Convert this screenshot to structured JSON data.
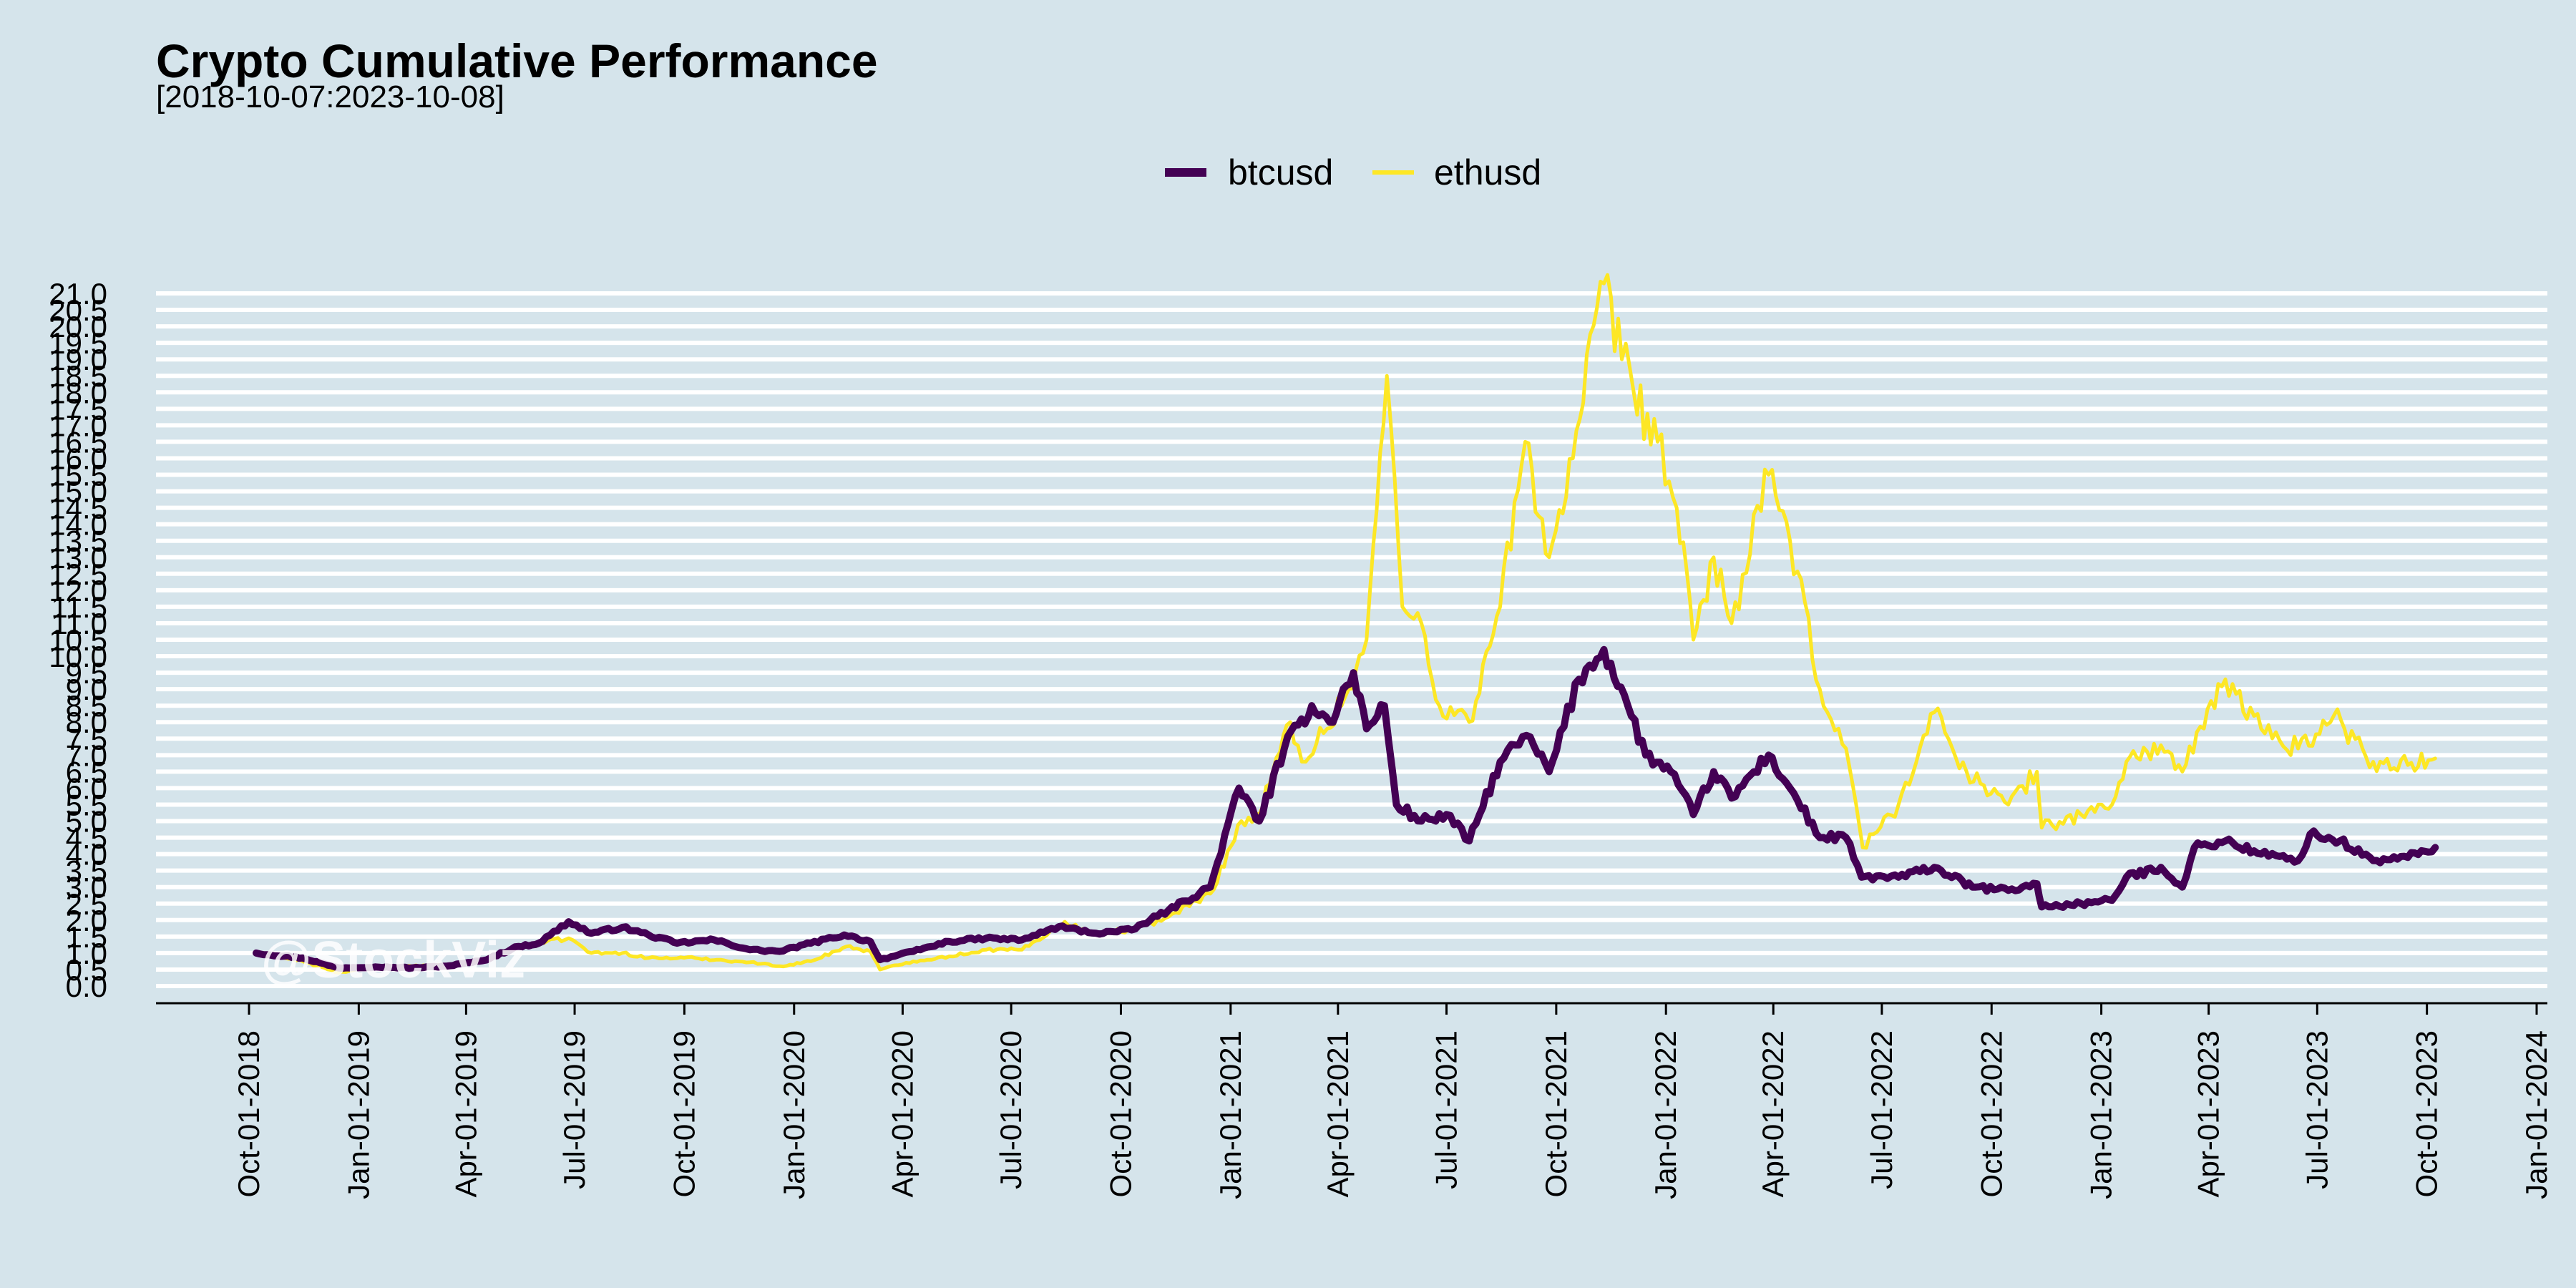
{
  "chart_data": {
    "type": "line",
    "title": "Crypto Cumulative Performance",
    "subtitle": "[2018-10-07:2023-10-08]",
    "watermark": "@StockViz",
    "xlabel": "",
    "ylabel": "",
    "legend_position": "top-center",
    "grid": true,
    "background_color": "#d5e4eb",
    "grid_color": "#ffffff",
    "ylim": [
      0,
      21
    ],
    "yticks": [
      "0.0",
      "0.5",
      "1.0",
      "1.5",
      "2.0",
      "2.5",
      "3.0",
      "3.5",
      "4.0",
      "4.5",
      "5.0",
      "5.5",
      "6.0",
      "6.5",
      "7.0",
      "7.5",
      "8.0",
      "8.5",
      "9.0",
      "9.5",
      "10.0",
      "10.5",
      "11.0",
      "11.5",
      "12.0",
      "12.5",
      "13.0",
      "13.5",
      "14.0",
      "14.5",
      "15.0",
      "15.5",
      "16.0",
      "16.5",
      "17.0",
      "17.5",
      "18.0",
      "18.5",
      "19.0",
      "19.5",
      "20.0",
      "20.5",
      "21.0"
    ],
    "xlim": [
      "2018-07-15",
      "2024-01-10"
    ],
    "xticks": [
      "Oct-01-2018",
      "Jan-01-2019",
      "Apr-01-2019",
      "Jul-01-2019",
      "Oct-01-2019",
      "Jan-01-2020",
      "Apr-01-2020",
      "Jul-01-2020",
      "Oct-01-2020",
      "Jan-01-2021",
      "Apr-01-2021",
      "Jul-01-2021",
      "Oct-01-2021",
      "Jan-01-2022",
      "Apr-01-2022",
      "Jul-01-2022",
      "Oct-01-2022",
      "Jan-01-2023",
      "Apr-01-2023",
      "Jul-01-2023",
      "Oct-01-2023",
      "Jan-01-2024"
    ],
    "xtick_dates": [
      "2018-10-01",
      "2019-01-01",
      "2019-04-01",
      "2019-07-01",
      "2019-10-01",
      "2020-01-01",
      "2020-04-01",
      "2020-07-01",
      "2020-10-01",
      "2021-01-01",
      "2021-04-01",
      "2021-07-01",
      "2021-10-01",
      "2022-01-01",
      "2022-04-01",
      "2022-07-01",
      "2022-10-01",
      "2023-01-01",
      "2023-04-01",
      "2023-07-01",
      "2023-10-01",
      "2024-01-01"
    ],
    "series": [
      {
        "name": "btcusd",
        "color": "#440154",
        "line_width": 10,
        "points": [
          [
            "2018-10-07",
            1.0
          ],
          [
            "2018-11-15",
            0.85
          ],
          [
            "2018-12-15",
            0.55
          ],
          [
            "2019-01-15",
            0.58
          ],
          [
            "2019-02-15",
            0.55
          ],
          [
            "2019-03-15",
            0.6
          ],
          [
            "2019-04-15",
            0.77
          ],
          [
            "2019-05-15",
            1.2
          ],
          [
            "2019-06-01",
            1.3
          ],
          [
            "2019-06-26",
            1.95
          ],
          [
            "2019-07-15",
            1.6
          ],
          [
            "2019-08-10",
            1.78
          ],
          [
            "2019-09-01",
            1.55
          ],
          [
            "2019-09-25",
            1.3
          ],
          [
            "2019-10-26",
            1.4
          ],
          [
            "2019-11-25",
            1.1
          ],
          [
            "2019-12-20",
            1.05
          ],
          [
            "2020-01-15",
            1.3
          ],
          [
            "2020-02-12",
            1.55
          ],
          [
            "2020-03-05",
            1.35
          ],
          [
            "2020-03-13",
            0.8
          ],
          [
            "2020-04-10",
            1.05
          ],
          [
            "2020-05-10",
            1.35
          ],
          [
            "2020-06-10",
            1.45
          ],
          [
            "2020-07-10",
            1.4
          ],
          [
            "2020-08-10",
            1.8
          ],
          [
            "2020-09-10",
            1.6
          ],
          [
            "2020-10-10",
            1.7
          ],
          [
            "2020-11-10",
            2.3
          ],
          [
            "2020-12-15",
            3.0
          ],
          [
            "2021-01-08",
            6.0
          ],
          [
            "2021-01-25",
            5.0
          ],
          [
            "2021-02-15",
            7.2
          ],
          [
            "2021-03-10",
            8.5
          ],
          [
            "2021-03-25",
            8.0
          ],
          [
            "2021-04-14",
            9.5
          ],
          [
            "2021-04-25",
            7.8
          ],
          [
            "2021-05-10",
            8.5
          ],
          [
            "2021-05-20",
            5.5
          ],
          [
            "2021-06-10",
            5.0
          ],
          [
            "2021-07-01",
            5.2
          ],
          [
            "2021-07-20",
            4.4
          ],
          [
            "2021-08-15",
            6.8
          ],
          [
            "2021-09-06",
            7.6
          ],
          [
            "2021-09-25",
            6.5
          ],
          [
            "2021-10-20",
            9.3
          ],
          [
            "2021-11-10",
            10.2
          ],
          [
            "2021-11-30",
            8.5
          ],
          [
            "2021-12-15",
            7.0
          ],
          [
            "2022-01-05",
            6.5
          ],
          [
            "2022-01-24",
            5.2
          ],
          [
            "2022-02-10",
            6.5
          ],
          [
            "2022-02-25",
            5.7
          ],
          [
            "2022-03-28",
            7.0
          ],
          [
            "2022-04-15",
            6.0
          ],
          [
            "2022-05-10",
            4.5
          ],
          [
            "2022-06-01",
            4.5
          ],
          [
            "2022-06-14",
            3.3
          ],
          [
            "2022-07-15",
            3.3
          ],
          [
            "2022-08-14",
            3.6
          ],
          [
            "2022-09-15",
            3.0
          ],
          [
            "2022-10-15",
            2.9
          ],
          [
            "2022-11-08",
            3.1
          ],
          [
            "2022-11-12",
            2.4
          ],
          [
            "2022-12-15",
            2.5
          ],
          [
            "2023-01-10",
            2.6
          ],
          [
            "2023-01-22",
            3.3
          ],
          [
            "2023-02-20",
            3.6
          ],
          [
            "2023-03-10",
            3.0
          ],
          [
            "2023-03-20",
            4.2
          ],
          [
            "2023-04-15",
            4.4
          ],
          [
            "2023-05-15",
            4.0
          ],
          [
            "2023-06-15",
            3.8
          ],
          [
            "2023-06-25",
            4.6
          ],
          [
            "2023-07-20",
            4.4
          ],
          [
            "2023-08-17",
            3.8
          ],
          [
            "2023-09-15",
            3.9
          ],
          [
            "2023-10-08",
            4.2
          ]
        ]
      },
      {
        "name": "ethusd",
        "color": "#fde725",
        "line_width": 5,
        "points": [
          [
            "2018-10-07",
            1.0
          ],
          [
            "2018-11-15",
            0.75
          ],
          [
            "2018-12-15",
            0.4
          ],
          [
            "2019-01-15",
            0.57
          ],
          [
            "2019-02-15",
            0.6
          ],
          [
            "2019-03-15",
            0.62
          ],
          [
            "2019-04-15",
            0.75
          ],
          [
            "2019-05-15",
            1.2
          ],
          [
            "2019-06-26",
            1.45
          ],
          [
            "2019-07-15",
            1.0
          ],
          [
            "2019-08-10",
            1.0
          ],
          [
            "2019-09-01",
            0.85
          ],
          [
            "2019-10-10",
            0.85
          ],
          [
            "2019-11-25",
            0.72
          ],
          [
            "2019-12-20",
            0.6
          ],
          [
            "2020-01-15",
            0.75
          ],
          [
            "2020-02-14",
            1.2
          ],
          [
            "2020-03-05",
            1.05
          ],
          [
            "2020-03-13",
            0.5
          ],
          [
            "2020-04-10",
            0.75
          ],
          [
            "2020-05-10",
            0.9
          ],
          [
            "2020-06-10",
            1.1
          ],
          [
            "2020-07-10",
            1.1
          ],
          [
            "2020-08-15",
            1.95
          ],
          [
            "2020-09-05",
            1.6
          ],
          [
            "2020-10-10",
            1.7
          ],
          [
            "2020-11-10",
            2.1
          ],
          [
            "2020-12-15",
            2.8
          ],
          [
            "2021-01-10",
            5.0
          ],
          [
            "2021-01-25",
            5.2
          ],
          [
            "2021-02-20",
            8.0
          ],
          [
            "2021-03-05",
            6.8
          ],
          [
            "2021-04-10",
            9.0
          ],
          [
            "2021-04-25",
            10.5
          ],
          [
            "2021-05-12",
            18.5
          ],
          [
            "2021-05-25",
            11.5
          ],
          [
            "2021-06-10",
            11.0
          ],
          [
            "2021-06-25",
            8.5
          ],
          [
            "2021-07-20",
            8.0
          ],
          [
            "2021-08-15",
            11.5
          ],
          [
            "2021-09-05",
            16.5
          ],
          [
            "2021-09-25",
            13.0
          ],
          [
            "2021-10-15",
            16.0
          ],
          [
            "2021-11-10",
            21.3
          ],
          [
            "2021-11-25",
            19.0
          ],
          [
            "2021-12-05",
            18.0
          ],
          [
            "2021-12-25",
            16.5
          ],
          [
            "2022-01-10",
            14.5
          ],
          [
            "2022-01-24",
            10.5
          ],
          [
            "2022-02-10",
            13.0
          ],
          [
            "2022-02-25",
            11.0
          ],
          [
            "2022-03-28",
            15.5
          ],
          [
            "2022-04-15",
            13.5
          ],
          [
            "2022-05-10",
            9.0
          ],
          [
            "2022-06-01",
            7.2
          ],
          [
            "2022-06-15",
            4.2
          ],
          [
            "2022-07-15",
            5.5
          ],
          [
            "2022-08-14",
            8.3
          ],
          [
            "2022-09-10",
            6.5
          ],
          [
            "2022-10-15",
            5.5
          ],
          [
            "2022-11-08",
            6.5
          ],
          [
            "2022-11-12",
            4.8
          ],
          [
            "2022-12-15",
            5.2
          ],
          [
            "2023-01-10",
            5.5
          ],
          [
            "2023-01-22",
            6.8
          ],
          [
            "2023-02-20",
            7.3
          ],
          [
            "2023-03-10",
            6.5
          ],
          [
            "2023-04-15",
            9.3
          ],
          [
            "2023-05-15",
            7.8
          ],
          [
            "2023-06-15",
            7.2
          ],
          [
            "2023-07-15",
            8.2
          ],
          [
            "2023-08-17",
            6.8
          ],
          [
            "2023-09-15",
            6.7
          ],
          [
            "2023-10-08",
            6.9
          ]
        ]
      }
    ]
  }
}
